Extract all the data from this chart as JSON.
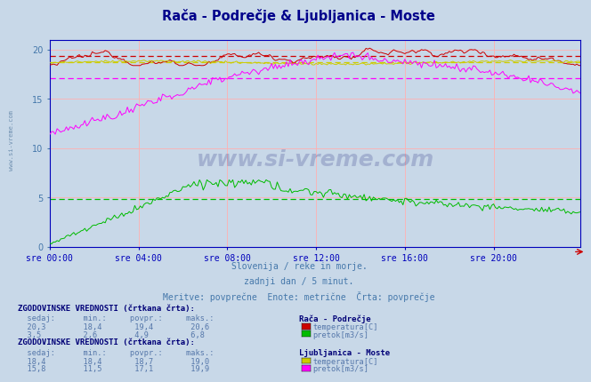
{
  "title": "Rača - Podrečje & Ljubljanica - Moste",
  "title_color": "#00008b",
  "background_color": "#c8d8e8",
  "plot_bg_color": "#c8d8e8",
  "grid_color": "#ffb0b0",
  "axis_color": "#0000bb",
  "tick_color": "#4477aa",
  "xlim": [
    0,
    287
  ],
  "ylim": [
    0,
    21
  ],
  "yticks": [
    0,
    5,
    10,
    15,
    20
  ],
  "xtick_labels": [
    "sre 00:00",
    "sre 04:00",
    "sre 08:00",
    "sre 12:00",
    "sre 16:00",
    "sre 20:00"
  ],
  "xtick_positions": [
    0,
    48,
    96,
    144,
    192,
    240
  ],
  "subtitle1": "Slovenija / reke in morje.",
  "subtitle2": "zadnji dan / 5 minut.",
  "subtitle3": "Meritve: povprečne  Enote: metrične  Črta: povprečje",
  "watermark": "www.si-vreme.com",
  "side_watermark": "www.si-vreme.com",
  "section1_title": "ZGODOVINSKE VREDNOSTI (črtkana črta):",
  "section1_col_header": "  sedaj:      min.:     povpr.:     maks.:",
  "section1_station": "Rača - Podrečje",
  "section1_row1_vals": "  20,3        18,4       19,4        20,6",
  "section1_label1": "temperatura[C]",
  "section1_color1": "#cc0000",
  "section1_row2_vals": "  3,5         2,6        4,9         6,8",
  "section1_label2": "pretok[m3/s]",
  "section1_color2": "#00bb00",
  "section2_title": "ZGODOVINSKE VREDNOSTI (črtkana črta):",
  "section2_col_header": "  sedaj:      min.:     povpr.:     maks.:",
  "section2_station": "Ljubljanica - Moste",
  "section2_row1_vals": "  18,4        18,4       18,7        19,0",
  "section2_label1": "temperatura[C]",
  "section2_color1": "#cccc00",
  "section2_row2_vals": "  15,8        11,5       17,1        19,9",
  "section2_label2": "pretok[m3/s]",
  "section2_color2": "#ff00ff",
  "raca_temp_color": "#cc0000",
  "raca_flow_color": "#00bb00",
  "ljub_temp_color": "#cccc00",
  "ljub_flow_color": "#ff00ff"
}
